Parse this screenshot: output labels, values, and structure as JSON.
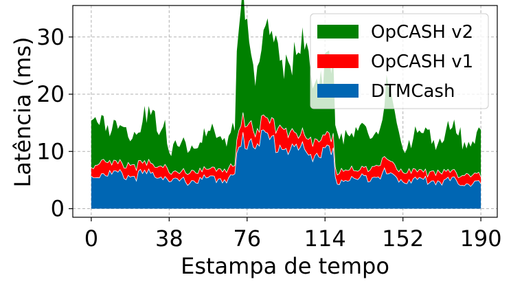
{
  "chart_data": {
    "type": "area",
    "stacked": true,
    "xlabel": "Estampa de tempo",
    "ylabel": "Latência (ms)",
    "xlim": [
      -9,
      198
    ],
    "ylim": [
      -1.5,
      35.5
    ],
    "xticks": [
      0,
      38,
      76,
      114,
      152,
      190
    ],
    "yticks": [
      0,
      10,
      20,
      30
    ],
    "grid": true,
    "legend_position": "top-right",
    "x_anchors": [
      0,
      4,
      6,
      10,
      20,
      30,
      36,
      38,
      44,
      60,
      70,
      71,
      74,
      80,
      90,
      100,
      110,
      118,
      119,
      124,
      130,
      140,
      144,
      150,
      160,
      170,
      180,
      190
    ],
    "series": [
      {
        "name": "DTMCash",
        "color": "#0066b3",
        "values": [
          5.5,
          6.2,
          6.4,
          6.0,
          5.8,
          6.0,
          6.0,
          4.5,
          4.8,
          5.2,
          5.5,
          9.0,
          11.8,
          12.5,
          11.5,
          10.2,
          9.8,
          9.3,
          4.8,
          5.2,
          5.0,
          6.3,
          6.0,
          5.2,
          5.0,
          4.9,
          4.7,
          4.3
        ]
      },
      {
        "name": "OpCASH v1",
        "color": "#ff0000",
        "values": [
          2.0,
          2.0,
          2.2,
          1.9,
          1.8,
          1.9,
          1.8,
          1.4,
          1.5,
          1.6,
          1.6,
          2.5,
          4.2,
          2.0,
          3.6,
          2.5,
          2.4,
          3.0,
          1.8,
          1.6,
          1.7,
          1.8,
          2.9,
          1.6,
          1.5,
          1.6,
          1.4,
          1.6
        ]
      },
      {
        "name": "OpCASH v2",
        "color": "#008000",
        "values": [
          7.5,
          7.8,
          8.5,
          5.5,
          6.5,
          7.5,
          8.0,
          4.0,
          4.7,
          5.7,
          6.0,
          14.0,
          17.0,
          13.5,
          13.0,
          13.5,
          13.0,
          11.2,
          6.5,
          7.2,
          5.8,
          6.0,
          11.5,
          5.2,
          6.0,
          6.3,
          6.8,
          6.3
        ]
      }
    ]
  }
}
